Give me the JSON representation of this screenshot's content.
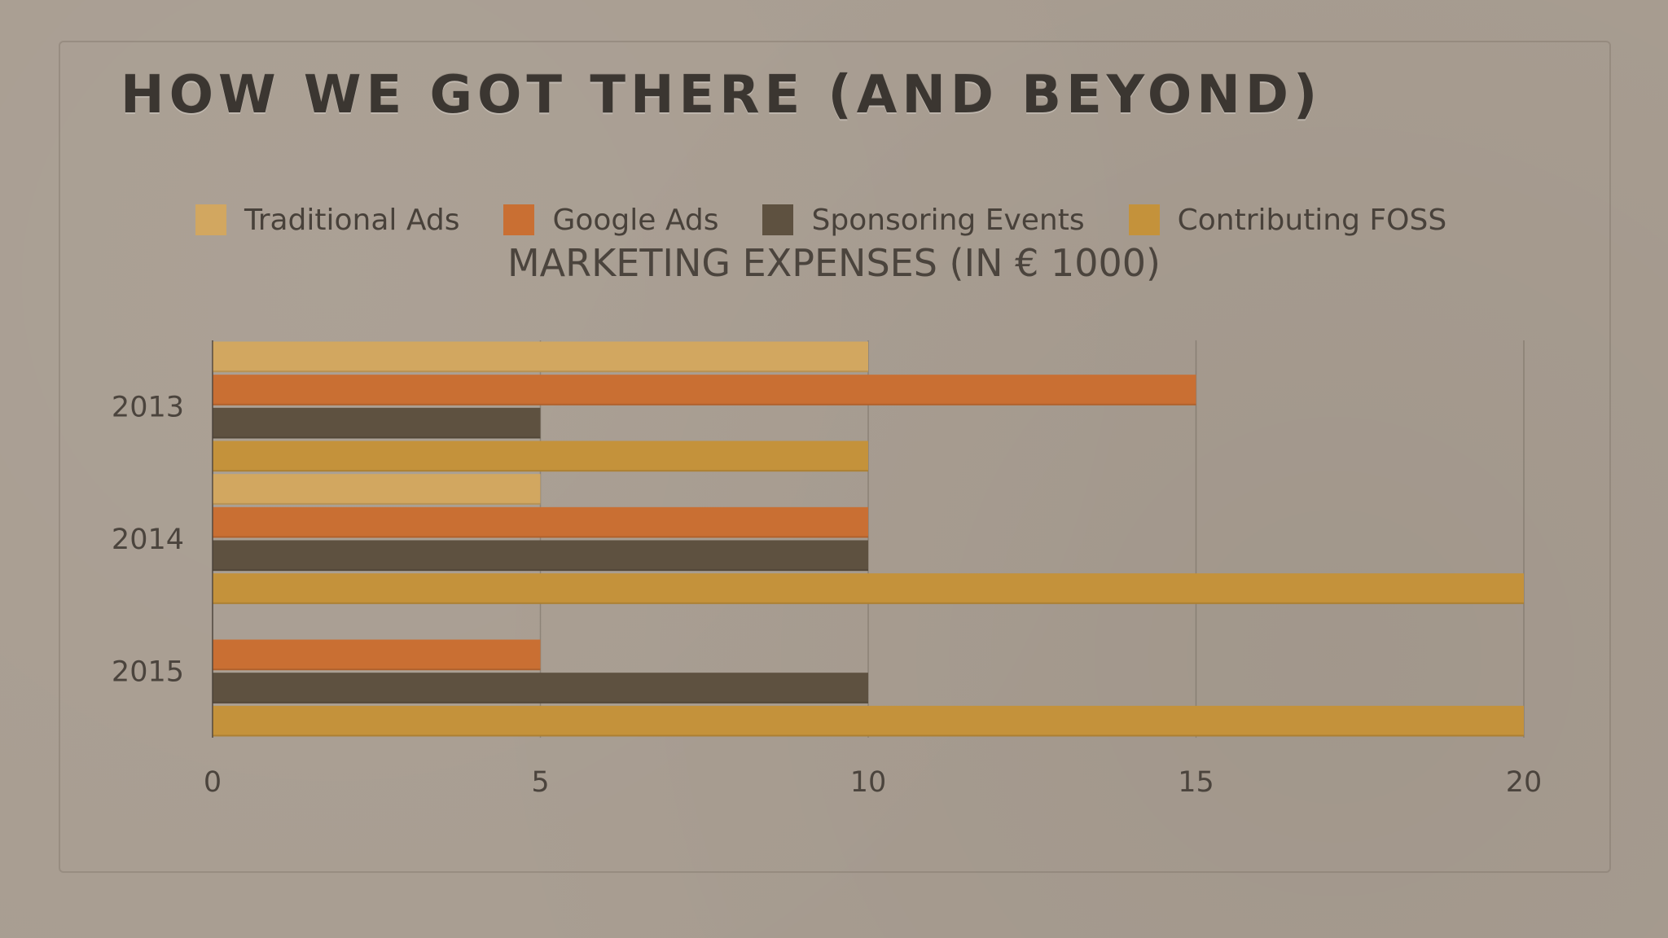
{
  "slide": {
    "title": "HOW WE GOT THERE (AND BEYOND)"
  },
  "chart_data": {
    "type": "bar",
    "orientation": "horizontal",
    "title": "MARKETING EXPENSES (IN € 1000)",
    "xlabel": "",
    "ylabel": "",
    "categories": [
      "2013",
      "2014",
      "2015"
    ],
    "series": [
      {
        "name": "Traditional Ads",
        "color": "#d2a760",
        "values": [
          10,
          5,
          0
        ]
      },
      {
        "name": "Google Ads",
        "color": "#c96f33",
        "values": [
          15,
          10,
          5
        ]
      },
      {
        "name": "Sponsoring Events",
        "color": "#5e5140",
        "values": [
          5,
          10,
          10
        ]
      },
      {
        "name": "Contributing FOSS",
        "color": "#c4923b",
        "values": [
          10,
          20,
          20
        ]
      }
    ],
    "xlim": [
      0,
      20
    ],
    "xticks": [
      "0",
      "5",
      "10",
      "15",
      "20"
    ],
    "grid": true,
    "legend": "top"
  }
}
